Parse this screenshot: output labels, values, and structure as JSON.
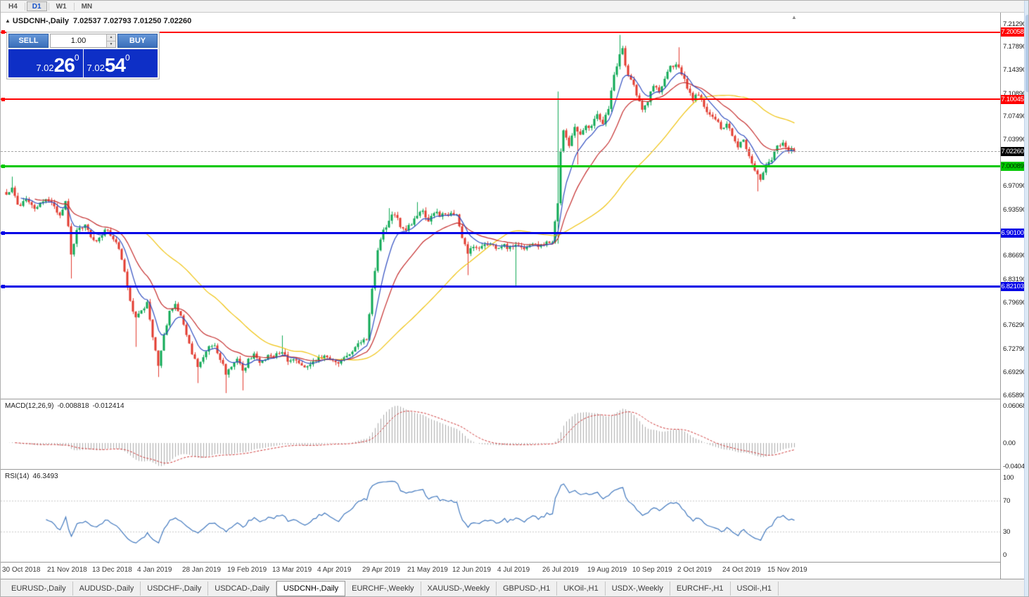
{
  "toolbar": {
    "timeframes": [
      {
        "label": "H4",
        "active": false
      },
      {
        "label": "D1",
        "active": true
      },
      {
        "label": "W1",
        "active": false
      },
      {
        "label": "MN",
        "active": false
      }
    ]
  },
  "chart": {
    "symbol_period": "USDCNH-,Daily",
    "ohlc": "7.02537 7.02793 7.01250 7.02260"
  },
  "icons": {
    "title_marker": "▲",
    "shift_marker": "▲",
    "spin_up": "▲",
    "spin_down": "▼"
  },
  "trade_panel": {
    "sell_label": "SELL",
    "buy_label": "BUY",
    "volume": "1.00",
    "sell_price": {
      "prefix": "7.02",
      "big": "26",
      "pip": "0"
    },
    "buy_price": {
      "prefix": "7.02",
      "big": "54",
      "pip": "0"
    }
  },
  "macd_panel": {
    "name": "MACD(12,26,9)",
    "value": "-0.008818",
    "signal": "-0.012414",
    "axis": [
      "0.060687",
      "0.00",
      "-0.040432"
    ]
  },
  "rsi_panel": {
    "name": "RSI(14)",
    "value": "46.3493",
    "axis": [
      "100",
      "70",
      "30",
      "0"
    ]
  },
  "date_axis": [
    "30 Oct 2018",
    "21 Nov 2018",
    "13 Dec 2018",
    "4 Jan 2019",
    "28 Jan 2019",
    "19 Feb 2019",
    "13 Mar 2019",
    "4 Apr 2019",
    "29 Apr 2019",
    "21 May 2019",
    "12 Jun 2019",
    "4 Jul 2019",
    "26 Jul 2019",
    "19 Aug 2019",
    "10 Sep 2019",
    "2 Oct 2019",
    "24 Oct 2019",
    "15 Nov 2019"
  ],
  "tabs": [
    {
      "label": "EURUSD-,Daily",
      "active": false
    },
    {
      "label": "AUDUSD-,Daily",
      "active": false
    },
    {
      "label": "USDCHF-,Daily",
      "active": false
    },
    {
      "label": "USDCAD-,Daily",
      "active": false
    },
    {
      "label": "USDCNH-,Daily",
      "active": true
    },
    {
      "label": "EURCHF-,Weekly",
      "active": false
    },
    {
      "label": "XAUUSD-,Weekly",
      "active": false
    },
    {
      "label": "GBPUSD-,H1",
      "active": false
    },
    {
      "label": "UKOil-,H1",
      "active": false
    },
    {
      "label": "USDX-,Weekly",
      "active": false
    },
    {
      "label": "EURCHF-,H1",
      "active": false
    },
    {
      "label": "USOil-,H1",
      "active": false
    }
  ],
  "chart_data": {
    "type": "candlestick",
    "symbol": "USDCNH-",
    "period": "Daily",
    "bars": 281,
    "y_range": [
      6.6589,
      7.2129
    ],
    "y_ticks": [
      "7.21290",
      "7.17890",
      "7.14390",
      "7.10890",
      "7.07490",
      "7.03990",
      "6.97090",
      "6.93590",
      "6.86690",
      "6.83190",
      "6.79690",
      "6.76290",
      "6.72790",
      "6.69290",
      "6.65890"
    ],
    "current": {
      "open": 7.02537,
      "high": 7.02793,
      "low": 7.0125,
      "close": 7.0226,
      "label": "7.02260"
    },
    "levels": [
      {
        "price": 7.20058,
        "label": "7.20058",
        "color": "#FF0000",
        "thickness": 2,
        "text_color": "#FFFFFF"
      },
      {
        "price": 7.10045,
        "label": "7.10045",
        "color": "#FF0000",
        "thickness": 2,
        "text_color": "#FFFFFF"
      },
      {
        "price": 7.00089,
        "label": "7.00089",
        "color": "#00C800",
        "thickness": 3,
        "text_color": "#002900"
      },
      {
        "price": 6.901,
        "label": "6.90100",
        "color": "#0000E6",
        "thickness": 3,
        "text_color": "#FFFFFF"
      },
      {
        "price": 6.82103,
        "label": "6.82103",
        "color": "#0000E6",
        "thickness": 3,
        "text_color": "#FFFFFF"
      }
    ],
    "moving_averages": [
      {
        "name": "fast",
        "type": "ema",
        "period": 8,
        "color": "#2F4DC0"
      },
      {
        "name": "mid",
        "type": "ema",
        "period": 20,
        "color": "#C42B2B"
      },
      {
        "name": "slow",
        "type": "sma",
        "period": 50,
        "color": "#EFC20C"
      }
    ],
    "macd": {
      "fast": 12,
      "slow": 26,
      "signal": 9,
      "value": -0.008818,
      "signal_value": -0.012414,
      "axis_max": 0.060687,
      "axis_min": -0.040432
    },
    "rsi": {
      "period": 14,
      "value": 46.3493,
      "levels": [
        70,
        30
      ]
    },
    "colors": {
      "up": "#0FA855",
      "down": "#E23B2F",
      "macd_hist": "#ABABAB",
      "macd_signal": "#CC3333",
      "rsi_line": "#4178BE",
      "rsi_level": "#C8C8C8",
      "current_line": "#A6A6A6",
      "current_label_bg": "#000000"
    },
    "price_anchors": [
      [
        0,
        6.958
      ],
      [
        2,
        6.968
      ],
      [
        4,
        6.94
      ],
      [
        7,
        6.952
      ],
      [
        10,
        6.936
      ],
      [
        13,
        6.95
      ],
      [
        16,
        6.944
      ],
      [
        19,
        6.928
      ],
      [
        21,
        6.946
      ],
      [
        23,
        6.87
      ],
      [
        25,
        6.902
      ],
      [
        28,
        6.912
      ],
      [
        30,
        6.896
      ],
      [
        32,
        6.888
      ],
      [
        35,
        6.906
      ],
      [
        38,
        6.894
      ],
      [
        40,
        6.878
      ],
      [
        42,
        6.84
      ],
      [
        44,
        6.802
      ],
      [
        46,
        6.772
      ],
      [
        48,
        6.784
      ],
      [
        50,
        6.796
      ],
      [
        52,
        6.748
      ],
      [
        54,
        6.706
      ],
      [
        56,
        6.748
      ],
      [
        58,
        6.784
      ],
      [
        60,
        6.798
      ],
      [
        62,
        6.776
      ],
      [
        64,
        6.748
      ],
      [
        66,
        6.722
      ],
      [
        68,
        6.702
      ],
      [
        70,
        6.714
      ],
      [
        72,
        6.732
      ],
      [
        74,
        6.736
      ],
      [
        76,
        6.714
      ],
      [
        78,
        6.692
      ],
      [
        80,
        6.702
      ],
      [
        82,
        6.716
      ],
      [
        84,
        6.694
      ],
      [
        86,
        6.712
      ],
      [
        88,
        6.718
      ],
      [
        90,
        6.708
      ],
      [
        93,
        6.716
      ],
      [
        96,
        6.719
      ],
      [
        98,
        6.726
      ],
      [
        100,
        6.706
      ],
      [
        103,
        6.713
      ],
      [
        106,
        6.701
      ],
      [
        109,
        6.711
      ],
      [
        112,
        6.717
      ],
      [
        115,
        6.711
      ],
      [
        118,
        6.709
      ],
      [
        121,
        6.717
      ],
      [
        124,
        6.731
      ],
      [
        126,
        6.739
      ],
      [
        128,
        6.743
      ],
      [
        130,
        6.815
      ],
      [
        132,
        6.878
      ],
      [
        134,
        6.903
      ],
      [
        136,
        6.921
      ],
      [
        138,
        6.931
      ],
      [
        140,
        6.913
      ],
      [
        142,
        6.906
      ],
      [
        144,
        6.916
      ],
      [
        146,
        6.929
      ],
      [
        148,
        6.933
      ],
      [
        150,
        6.921
      ],
      [
        152,
        6.931
      ],
      [
        154,
        6.928
      ],
      [
        156,
        6.931
      ],
      [
        158,
        6.928
      ],
      [
        160,
        6.931
      ],
      [
        162,
        6.896
      ],
      [
        164,
        6.871
      ],
      [
        166,
        6.883
      ],
      [
        168,
        6.879
      ],
      [
        170,
        6.886
      ],
      [
        172,
        6.881
      ],
      [
        174,
        6.879
      ],
      [
        176,
        6.883
      ],
      [
        178,
        6.879
      ],
      [
        180,
        6.881
      ],
      [
        182,
        6.881
      ],
      [
        184,
        6.879
      ],
      [
        186,
        6.883
      ],
      [
        188,
        6.886
      ],
      [
        190,
        6.881
      ],
      [
        192,
        6.886
      ],
      [
        194,
        6.89
      ],
      [
        196,
        6.942
      ],
      [
        197,
        7.022
      ],
      [
        198,
        7.051
      ],
      [
        200,
        7.032
      ],
      [
        202,
        7.059
      ],
      [
        204,
        7.049
      ],
      [
        206,
        7.063
      ],
      [
        208,
        7.059
      ],
      [
        210,
        7.079
      ],
      [
        212,
        7.066
      ],
      [
        214,
        7.089
      ],
      [
        216,
        7.136
      ],
      [
        218,
        7.17
      ],
      [
        219,
        7.179
      ],
      [
        220,
        7.149
      ],
      [
        222,
        7.129
      ],
      [
        224,
        7.109
      ],
      [
        226,
        7.086
      ],
      [
        228,
        7.099
      ],
      [
        230,
        7.119
      ],
      [
        232,
        7.113
      ],
      [
        234,
        7.129
      ],
      [
        236,
        7.149
      ],
      [
        238,
        7.153
      ],
      [
        240,
        7.139
      ],
      [
        242,
        7.119
      ],
      [
        244,
        7.099
      ],
      [
        246,
        7.109
      ],
      [
        248,
        7.089
      ],
      [
        250,
        7.079
      ],
      [
        252,
        7.069
      ],
      [
        254,
        7.059
      ],
      [
        256,
        7.063
      ],
      [
        258,
        7.049
      ],
      [
        260,
        7.029
      ],
      [
        262,
        7.039
      ],
      [
        264,
        7.013
      ],
      [
        266,
        6.993
      ],
      [
        268,
        6.979
      ],
      [
        270,
        7.003
      ],
      [
        272,
        7.013
      ],
      [
        274,
        7.029
      ],
      [
        276,
        7.039
      ],
      [
        278,
        7.023
      ],
      [
        280,
        7.0226
      ]
    ],
    "wick_overrides": [
      {
        "i": 2,
        "high": 6.985
      },
      {
        "i": 23,
        "low": 6.833
      },
      {
        "i": 46,
        "low": 6.731
      },
      {
        "i": 54,
        "low": 6.686
      },
      {
        "i": 68,
        "low": 6.677
      },
      {
        "i": 78,
        "low": 6.662
      },
      {
        "i": 84,
        "low": 6.666
      },
      {
        "i": 98,
        "high": 6.748
      },
      {
        "i": 136,
        "high": 6.938
      },
      {
        "i": 146,
        "high": 6.947
      },
      {
        "i": 164,
        "low": 6.838
      },
      {
        "i": 181,
        "low": 6.822
      },
      {
        "i": 196,
        "high": 7.112,
        "low": 6.885
      },
      {
        "i": 203,
        "low": 7.003
      },
      {
        "i": 218,
        "high": 7.1965
      },
      {
        "i": 239,
        "high": 7.178
      },
      {
        "i": 267,
        "low": 6.963
      }
    ],
    "x_label_step_bars": 16
  }
}
